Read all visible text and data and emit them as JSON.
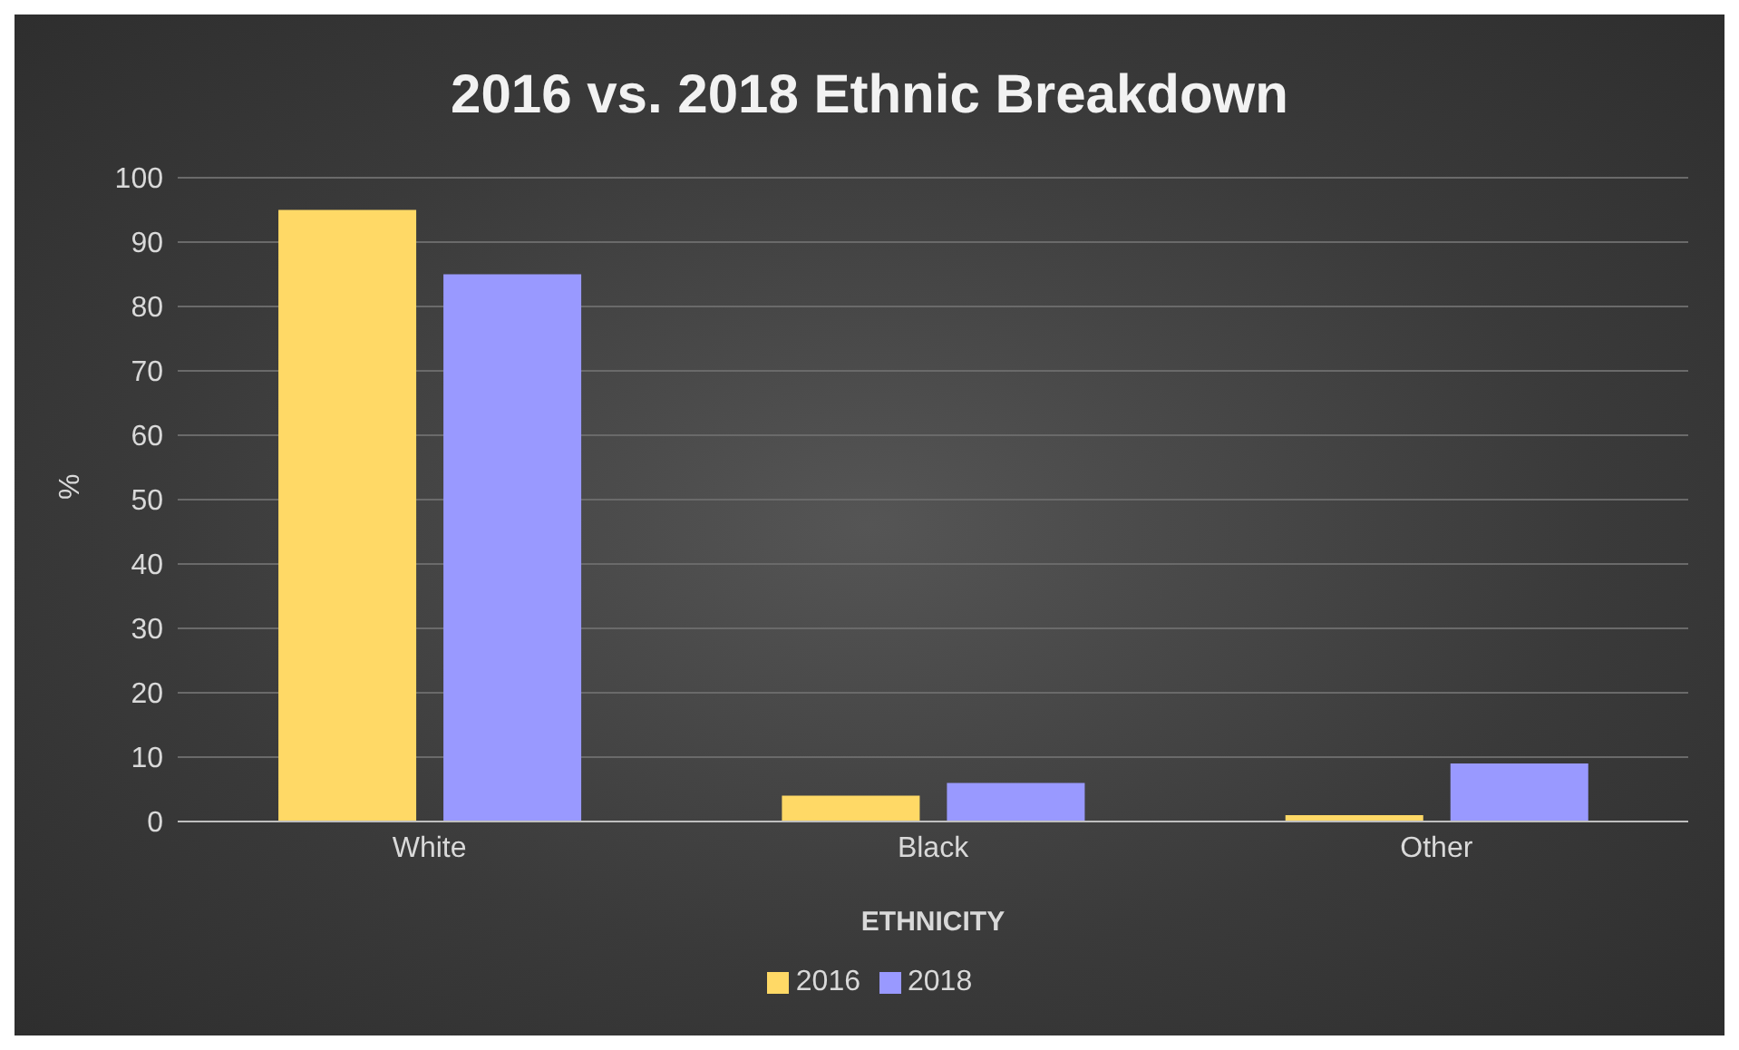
{
  "chart_data": {
    "type": "bar",
    "title": "2016 vs. 2018 Ethnic Breakdown",
    "xlabel": "ETHNICITY",
    "ylabel": "%",
    "categories": [
      "White",
      "Black",
      "Other"
    ],
    "series": [
      {
        "name": "2016",
        "color": "#ffd966",
        "values": [
          95,
          4,
          1
        ]
      },
      {
        "name": "2018",
        "color": "#9999ff",
        "values": [
          85,
          6,
          9
        ]
      }
    ],
    "ylim": [
      0,
      100
    ],
    "yticks": [
      0,
      10,
      20,
      30,
      40,
      50,
      60,
      70,
      80,
      90,
      100
    ],
    "grid": "y",
    "legend": "bottom"
  }
}
